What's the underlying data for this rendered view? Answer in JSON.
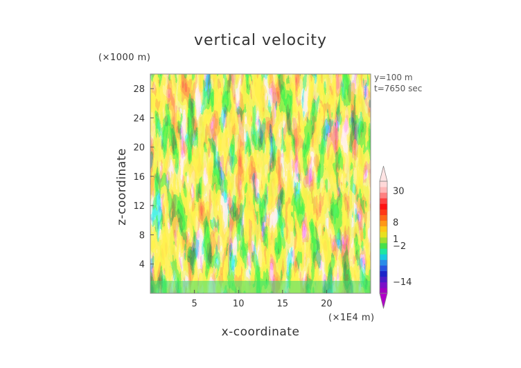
{
  "chart_data": {
    "type": "heatmap",
    "title": "vertical velocity",
    "xlabel": "x-coordinate",
    "ylabel": "z-coordinate",
    "x_unit_label": "(×1E4 m)",
    "z_unit_label": "(×1000 m)",
    "annotations": [
      "y=100  m",
      "t=7650  sec"
    ],
    "xlim": [
      0,
      25
    ],
    "ylim": [
      0,
      30
    ],
    "x_ticks": [
      "5",
      "10",
      "15",
      "20"
    ],
    "y_ticks": [
      "4",
      "8",
      "12",
      "16",
      "20",
      "24",
      "28"
    ],
    "colorbar": {
      "labels": [
        "30",
        "8",
        "1",
        "−2",
        "−14"
      ],
      "colors": [
        "#a000c0",
        "#7a10c8",
        "#4a1cc8",
        "#1b23c8",
        "#2855e0",
        "#2a8ce8",
        "#18c8e0",
        "#1ee6a0",
        "#46e04a",
        "#a0e030",
        "#e8e020",
        "#ffc818",
        "#ff9818",
        "#ff6818",
        "#ff3818",
        "#ff1010",
        "#ff4040",
        "#ff8080",
        "#ffb8b8",
        "#ffd8d8"
      ]
    }
  }
}
